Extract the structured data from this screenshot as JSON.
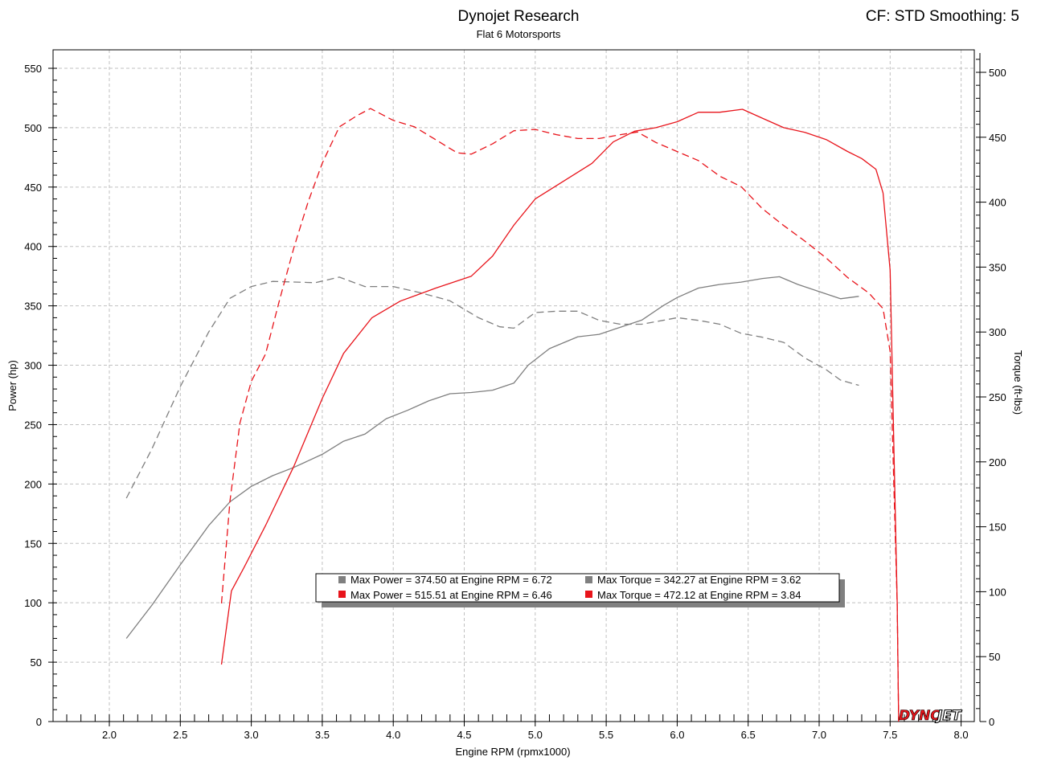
{
  "header": {
    "title": "Dynojet Research",
    "subtitle": "Flat 6 Motorsports",
    "corner_info": "CF: STD Smoothing: 5"
  },
  "logo": {
    "text_a": "DYNO",
    "text_b": "JET"
  },
  "colors": {
    "gray": "#7f7f7f",
    "red": "#e8141b",
    "grid": "#c0c0c0"
  },
  "chart_data": {
    "type": "line",
    "xlabel": "Engine RPM (rpmx1000)",
    "ylabel": "Power (hp)",
    "y2label": "Torque (ft-lbs)",
    "xlim": [
      1.6,
      8.1
    ],
    "ylim": [
      0,
      550
    ],
    "y2lim": [
      0,
      500
    ],
    "x_ticks": [
      "2.0",
      "2.5",
      "3.0",
      "3.5",
      "4.0",
      "4.5",
      "5.0",
      "5.5",
      "6.0",
      "6.5",
      "7.0",
      "7.5",
      "8.0"
    ],
    "y_ticks": [
      "0",
      "50",
      "100",
      "150",
      "200",
      "250",
      "300",
      "350",
      "400",
      "450",
      "500",
      "550"
    ],
    "y2_ticks": [
      "0",
      "50",
      "100",
      "150",
      "200",
      "250",
      "300",
      "350",
      "400",
      "450",
      "500"
    ],
    "grid": true,
    "legend_position": "bottom-center",
    "legend": [
      {
        "text": "Max Power = 374.50 at Engine RPM = 6.72",
        "color": "#7f7f7f"
      },
      {
        "text": "Max Torque = 342.27 at Engine RPM = 3.62",
        "color": "#7f7f7f"
      },
      {
        "text": "Max Power = 515.51 at Engine RPM = 6.46",
        "color": "#e8141b"
      },
      {
        "text": "Max Torque = 472.12 at Engine RPM = 3.84",
        "color": "#e8141b"
      }
    ],
    "series": [
      {
        "color": "#7f7f7f",
        "dash": false,
        "axis": "left",
        "points": [
          [
            2.12,
            70
          ],
          [
            2.3,
            98
          ],
          [
            2.5,
            132
          ],
          [
            2.7,
            165
          ],
          [
            2.85,
            185
          ],
          [
            3.0,
            198
          ],
          [
            3.15,
            207
          ],
          [
            3.3,
            214
          ],
          [
            3.5,
            225
          ],
          [
            3.65,
            236
          ],
          [
            3.8,
            242
          ],
          [
            3.95,
            255
          ],
          [
            4.1,
            262
          ],
          [
            4.25,
            270
          ],
          [
            4.4,
            276
          ],
          [
            4.55,
            277
          ],
          [
            4.7,
            279
          ],
          [
            4.85,
            285
          ],
          [
            4.95,
            300
          ],
          [
            5.1,
            314
          ],
          [
            5.3,
            324
          ],
          [
            5.45,
            326
          ],
          [
            5.6,
            332
          ],
          [
            5.75,
            338
          ],
          [
            5.9,
            350
          ],
          [
            6.0,
            357
          ],
          [
            6.15,
            365
          ],
          [
            6.3,
            368
          ],
          [
            6.45,
            370
          ],
          [
            6.6,
            373
          ],
          [
            6.72,
            374.5
          ],
          [
            6.85,
            368
          ],
          [
            7.0,
            362
          ],
          [
            7.15,
            356
          ],
          [
            7.28,
            358
          ]
        ]
      },
      {
        "color": "#7f7f7f",
        "dash": true,
        "axis": "right",
        "points": [
          [
            2.12,
            172
          ],
          [
            2.3,
            210
          ],
          [
            2.5,
            258
          ],
          [
            2.7,
            300
          ],
          [
            2.85,
            326
          ],
          [
            3.0,
            335
          ],
          [
            3.15,
            339
          ],
          [
            3.3,
            338.5
          ],
          [
            3.45,
            338
          ],
          [
            3.62,
            342.27
          ],
          [
            3.8,
            335
          ],
          [
            4.0,
            335
          ],
          [
            4.2,
            330
          ],
          [
            4.4,
            324
          ],
          [
            4.6,
            311
          ],
          [
            4.75,
            304
          ],
          [
            4.85,
            303
          ],
          [
            5.0,
            315
          ],
          [
            5.15,
            316
          ],
          [
            5.3,
            316
          ],
          [
            5.45,
            309
          ],
          [
            5.6,
            306
          ],
          [
            5.75,
            306
          ],
          [
            5.9,
            309
          ],
          [
            6.0,
            311
          ],
          [
            6.15,
            309
          ],
          [
            6.3,
            306
          ],
          [
            6.45,
            299
          ],
          [
            6.6,
            296
          ],
          [
            6.75,
            292
          ],
          [
            6.9,
            280
          ],
          [
            7.05,
            271
          ],
          [
            7.15,
            263
          ],
          [
            7.28,
            259
          ]
        ]
      },
      {
        "color": "#e8141b",
        "dash": false,
        "axis": "left",
        "points": [
          [
            2.79,
            48
          ],
          [
            2.86,
            110
          ],
          [
            2.95,
            130
          ],
          [
            3.1,
            165
          ],
          [
            3.3,
            215
          ],
          [
            3.5,
            272
          ],
          [
            3.65,
            310
          ],
          [
            3.85,
            340
          ],
          [
            4.05,
            354
          ],
          [
            4.3,
            365
          ],
          [
            4.55,
            375
          ],
          [
            4.7,
            392
          ],
          [
            4.85,
            418
          ],
          [
            5.0,
            440
          ],
          [
            5.2,
            455
          ],
          [
            5.4,
            470
          ],
          [
            5.55,
            488
          ],
          [
            5.7,
            497
          ],
          [
            5.85,
            500
          ],
          [
            6.0,
            505
          ],
          [
            6.15,
            513
          ],
          [
            6.3,
            513
          ],
          [
            6.46,
            515.51
          ],
          [
            6.6,
            508
          ],
          [
            6.75,
            500
          ],
          [
            6.9,
            496
          ],
          [
            7.05,
            490
          ],
          [
            7.2,
            480
          ],
          [
            7.3,
            474
          ],
          [
            7.4,
            465
          ],
          [
            7.45,
            445
          ],
          [
            7.5,
            380
          ],
          [
            7.55,
            100
          ],
          [
            7.56,
            0
          ]
        ]
      },
      {
        "color": "#e8141b",
        "dash": true,
        "axis": "right",
        "points": [
          [
            2.79,
            91
          ],
          [
            2.85,
            170
          ],
          [
            2.92,
            230
          ],
          [
            3.0,
            262
          ],
          [
            3.1,
            283
          ],
          [
            3.2,
            325
          ],
          [
            3.3,
            365
          ],
          [
            3.4,
            400
          ],
          [
            3.5,
            430
          ],
          [
            3.62,
            458
          ],
          [
            3.75,
            467
          ],
          [
            3.84,
            472.12
          ],
          [
            4.0,
            463
          ],
          [
            4.15,
            458
          ],
          [
            4.3,
            448
          ],
          [
            4.45,
            438
          ],
          [
            4.55,
            437
          ],
          [
            4.7,
            445
          ],
          [
            4.85,
            455
          ],
          [
            5.0,
            456
          ],
          [
            5.15,
            452
          ],
          [
            5.3,
            449
          ],
          [
            5.45,
            449
          ],
          [
            5.6,
            452
          ],
          [
            5.72,
            454
          ],
          [
            5.85,
            446
          ],
          [
            6.0,
            439
          ],
          [
            6.15,
            432
          ],
          [
            6.3,
            420
          ],
          [
            6.45,
            412
          ],
          [
            6.6,
            395
          ],
          [
            6.75,
            382
          ],
          [
            6.9,
            370
          ],
          [
            7.05,
            357
          ],
          [
            7.2,
            342
          ],
          [
            7.35,
            330
          ],
          [
            7.45,
            318
          ],
          [
            7.5,
            285
          ],
          [
            7.55,
            90
          ],
          [
            7.56,
            0
          ]
        ]
      }
    ]
  }
}
